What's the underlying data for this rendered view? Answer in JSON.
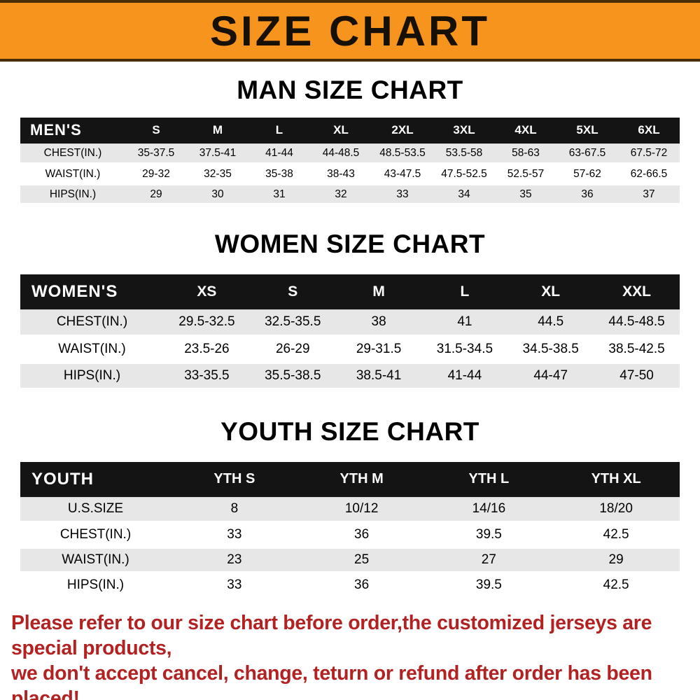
{
  "colors": {
    "banner_bg": "#f7941d",
    "header_bg": "#141414",
    "row_alt": "#e7e7e7",
    "accent_red": "#b22222"
  },
  "banner": {
    "title": "SIZE CHART"
  },
  "sections": [
    {
      "heading": "MAN SIZE CHART",
      "table": {
        "label": "MEN'S",
        "sizes": [
          "S",
          "M",
          "L",
          "XL",
          "2XL",
          "3XL",
          "4XL",
          "5XL",
          "6XL"
        ],
        "rows": [
          {
            "label": "CHEST(IN.)",
            "values": [
              "35-37.5",
              "37.5-41",
              "41-44",
              "44-48.5",
              "48.5-53.5",
              "53.5-58",
              "58-63",
              "63-67.5",
              "67.5-72"
            ]
          },
          {
            "label": "WAIST(IN.)",
            "values": [
              "29-32",
              "32-35",
              "35-38",
              "38-43",
              "43-47.5",
              "47.5-52.5",
              "52.5-57",
              "57-62",
              "62-66.5"
            ]
          },
          {
            "label": "HIPS(IN.)",
            "values": [
              "29",
              "30",
              "31",
              "32",
              "33",
              "34",
              "35",
              "36",
              "37"
            ]
          }
        ]
      }
    },
    {
      "heading": "WOMEN SIZE CHART",
      "table": {
        "label": "WOMEN'S",
        "sizes": [
          "XS",
          "S",
          "M",
          "L",
          "XL",
          "XXL"
        ],
        "rows": [
          {
            "label": "CHEST(IN.)",
            "values": [
              "29.5-32.5",
              "32.5-35.5",
              "38",
              "41",
              "44.5",
              "44.5-48.5"
            ]
          },
          {
            "label": "WAIST(IN.)",
            "values": [
              "23.5-26",
              "26-29",
              "29-31.5",
              "31.5-34.5",
              "34.5-38.5",
              "38.5-42.5"
            ]
          },
          {
            "label": "HIPS(IN.)",
            "values": [
              "33-35.5",
              "35.5-38.5",
              "38.5-41",
              "41-44",
              "44-47",
              "47-50"
            ]
          }
        ]
      }
    },
    {
      "heading": "YOUTH SIZE CHART",
      "table": {
        "label": "YOUTH",
        "sizes": [
          "YTH S",
          "YTH M",
          "YTH L",
          "YTH XL"
        ],
        "rows": [
          {
            "label": "U.S.SIZE",
            "values": [
              "8",
              "10/12",
              "14/16",
              "18/20"
            ]
          },
          {
            "label": "CHEST(IN.)",
            "values": [
              "33",
              "36",
              "39.5",
              "42.5"
            ]
          },
          {
            "label": "WAIST(IN.)",
            "values": [
              "23",
              "25",
              "27",
              "29"
            ]
          },
          {
            "label": "HIPS(IN.)",
            "values": [
              "33",
              "36",
              "39.5",
              "42.5"
            ]
          }
        ]
      }
    }
  ],
  "footer": {
    "line1": "Please refer to our size chart before order,the customized jerseys are special products,",
    "line2": "we don't accept cancel, change, teturn or refund after order has been placed!"
  }
}
